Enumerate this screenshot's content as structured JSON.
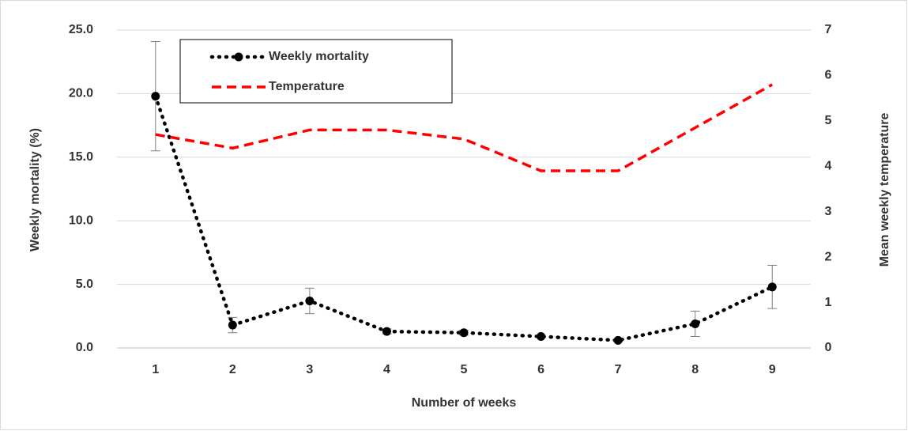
{
  "chart_data": {
    "type": "line",
    "x_label": "Number of weeks",
    "y_label": "Weekly mortality (%)",
    "y2_label": "Mean weekly temperature",
    "x": [
      1,
      2,
      3,
      4,
      5,
      6,
      7,
      8,
      9
    ],
    "xlim": [
      0.5,
      9.5
    ],
    "xticks": [
      1,
      2,
      3,
      4,
      5,
      6,
      7,
      8,
      9
    ],
    "ylim": [
      0,
      25
    ],
    "yticks": [
      {
        "value": 0,
        "label": "0.0"
      },
      {
        "value": 5,
        "label": "5.0"
      },
      {
        "value": 10,
        "label": "10.0"
      },
      {
        "value": 15,
        "label": "15.0"
      },
      {
        "value": 20,
        "label": "20.0"
      },
      {
        "value": 25,
        "label": "25.0"
      }
    ],
    "y2lim": [
      0,
      7
    ],
    "y2ticks": [
      0,
      1,
      2,
      3,
      4,
      5,
      6,
      7
    ],
    "grid": true,
    "legend": "upper left",
    "series": [
      {
        "name": "Weekly mortality",
        "color": "#000000",
        "style": "dotted",
        "marker": "circle",
        "values": [
          19.8,
          1.8,
          3.7,
          1.3,
          1.2,
          0.9,
          0.6,
          1.9,
          4.8
        ],
        "errors": [
          4.3,
          0.6,
          1.0,
          0.2,
          0.2,
          0.1,
          0.1,
          1.0,
          1.7
        ]
      },
      {
        "name": "Temperature",
        "color": "#ff0000",
        "style": "dashed",
        "axis": "y2",
        "values": [
          4.7,
          4.4,
          4.8,
          4.8,
          4.6,
          3.9,
          3.9,
          4.85,
          5.8
        ]
      }
    ]
  }
}
